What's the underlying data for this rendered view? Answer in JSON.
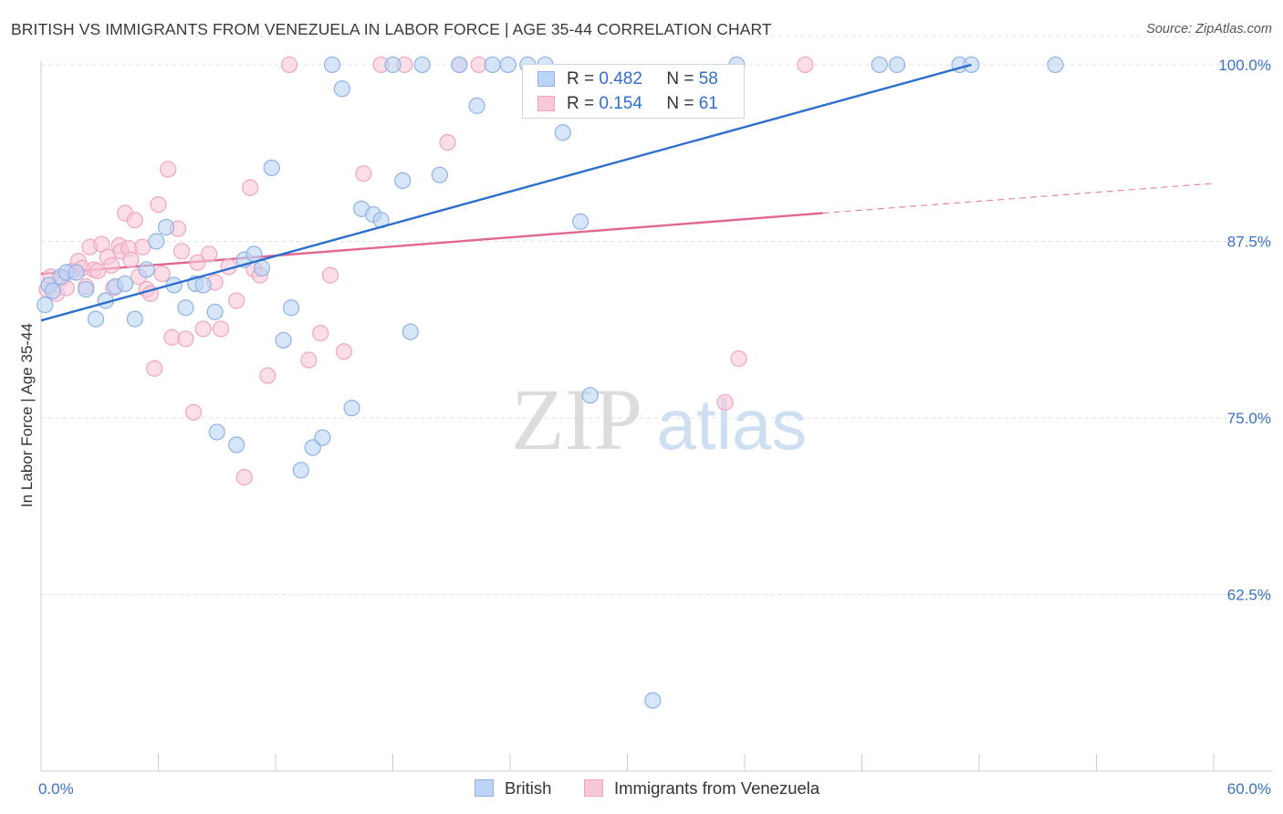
{
  "header": {
    "title": "BRITISH VS IMMIGRANTS FROM VENEZUELA IN LABOR FORCE | AGE 35-44 CORRELATION CHART",
    "source": "Source: ZipAtlas.com"
  },
  "watermark": {
    "zip": "ZIP",
    "atlas": "atlas"
  },
  "legend": {
    "british": {
      "r_label": "R =",
      "r_value": "0.482",
      "n_label": "N =",
      "n_value": "58"
    },
    "venezuela": {
      "r_label": "R =",
      "r_value": "0.154",
      "n_label": "N =",
      "n_value": "61"
    }
  },
  "colors": {
    "british_fill": "#bcd4f5",
    "british_stroke": "#8fb2e6",
    "british_line": "#2c6fcc",
    "venezuela_fill": "#f8c8d8",
    "venezuela_stroke": "#eea6be",
    "venezuela_line": "#e06890",
    "axis_label": "#3a72c8",
    "grid": "#dde2ea"
  },
  "chart_data": {
    "type": "scatter",
    "ylabel": "In Labor Force | Age 35-44",
    "xlim": [
      0,
      60
    ],
    "ylim": [
      50,
      102
    ],
    "x_tick_labels": [
      "0.0%",
      "60.0%"
    ],
    "y_ticks": [
      62.5,
      75.0,
      87.5,
      100.0
    ],
    "y_tick_labels": [
      "62.5%",
      "75.0%",
      "87.5%",
      "100.0%"
    ],
    "grid": "horizontal dashed",
    "legend_position": "top-center",
    "series": [
      {
        "name": "British",
        "points": [
          [
            0.2,
            83.0
          ],
          [
            0.4,
            84.4
          ],
          [
            0.6,
            84.0
          ],
          [
            1.0,
            85.0
          ],
          [
            1.3,
            85.3
          ],
          [
            1.8,
            85.3
          ],
          [
            2.3,
            84.1
          ],
          [
            2.8,
            82.0
          ],
          [
            3.3,
            83.3
          ],
          [
            3.8,
            84.3
          ],
          [
            4.3,
            84.5
          ],
          [
            4.8,
            82.0
          ],
          [
            5.4,
            85.5
          ],
          [
            5.9,
            87.5
          ],
          [
            6.4,
            88.5
          ],
          [
            6.8,
            84.4
          ],
          [
            7.4,
            82.8
          ],
          [
            7.9,
            84.5
          ],
          [
            8.3,
            84.4
          ],
          [
            8.9,
            82.5
          ],
          [
            9.0,
            74.0
          ],
          [
            10.0,
            73.1
          ],
          [
            10.4,
            86.2
          ],
          [
            10.9,
            86.6
          ],
          [
            11.3,
            85.6
          ],
          [
            11.8,
            92.7
          ],
          [
            12.4,
            80.5
          ],
          [
            12.8,
            82.8
          ],
          [
            13.3,
            71.3
          ],
          [
            13.9,
            72.9
          ],
          [
            14.4,
            73.6
          ],
          [
            14.9,
            100.0
          ],
          [
            15.4,
            98.3
          ],
          [
            15.9,
            75.7
          ],
          [
            16.4,
            89.8
          ],
          [
            17.0,
            89.4
          ],
          [
            17.4,
            89.0
          ],
          [
            18.0,
            100.0
          ],
          [
            18.5,
            91.8
          ],
          [
            18.9,
            81.1
          ],
          [
            19.5,
            100.0
          ],
          [
            20.4,
            92.2
          ],
          [
            21.4,
            100.0
          ],
          [
            22.3,
            97.1
          ],
          [
            23.1,
            100.0
          ],
          [
            23.9,
            100.0
          ],
          [
            24.9,
            100.0
          ],
          [
            25.8,
            100.0
          ],
          [
            26.7,
            95.2
          ],
          [
            27.6,
            88.9
          ],
          [
            28.1,
            76.6
          ],
          [
            31.3,
            55.0
          ],
          [
            35.6,
            100.0
          ],
          [
            42.9,
            100.0
          ],
          [
            43.8,
            100.0
          ],
          [
            47.0,
            100.0
          ],
          [
            47.6,
            100.0
          ],
          [
            51.9,
            100.0
          ]
        ],
        "trend": {
          "x": [
            0,
            47.6
          ],
          "y": [
            81.9,
            100.0
          ]
        }
      },
      {
        "name": "Immigrants from Venezuela",
        "points": [
          [
            0.3,
            84.1
          ],
          [
            0.5,
            85.0
          ],
          [
            0.8,
            83.8
          ],
          [
            1.1,
            84.9
          ],
          [
            1.3,
            84.2
          ],
          [
            1.6,
            85.4
          ],
          [
            1.9,
            86.1
          ],
          [
            2.1,
            85.6
          ],
          [
            2.3,
            84.3
          ],
          [
            2.5,
            87.1
          ],
          [
            2.7,
            85.5
          ],
          [
            2.9,
            85.4
          ],
          [
            3.1,
            87.3
          ],
          [
            3.4,
            86.4
          ],
          [
            3.6,
            85.8
          ],
          [
            3.7,
            84.2
          ],
          [
            4.0,
            87.2
          ],
          [
            4.1,
            86.8
          ],
          [
            4.3,
            89.5
          ],
          [
            4.5,
            87.0
          ],
          [
            4.6,
            86.2
          ],
          [
            4.8,
            89.0
          ],
          [
            5.0,
            85.0
          ],
          [
            5.2,
            87.1
          ],
          [
            5.4,
            84.1
          ],
          [
            5.6,
            83.8
          ],
          [
            5.8,
            78.5
          ],
          [
            6.0,
            90.1
          ],
          [
            6.2,
            85.2
          ],
          [
            6.5,
            92.6
          ],
          [
            6.7,
            80.7
          ],
          [
            7.0,
            88.4
          ],
          [
            7.2,
            86.8
          ],
          [
            7.4,
            80.6
          ],
          [
            7.8,
            75.4
          ],
          [
            8.0,
            86.0
          ],
          [
            8.3,
            81.3
          ],
          [
            8.6,
            86.6
          ],
          [
            8.9,
            84.6
          ],
          [
            9.2,
            81.3
          ],
          [
            9.6,
            85.7
          ],
          [
            10.0,
            83.3
          ],
          [
            10.4,
            70.8
          ],
          [
            10.7,
            91.3
          ],
          [
            10.9,
            85.5
          ],
          [
            11.2,
            85.1
          ],
          [
            11.6,
            78.0
          ],
          [
            12.7,
            100.0
          ],
          [
            13.7,
            79.1
          ],
          [
            14.3,
            81.0
          ],
          [
            14.8,
            85.1
          ],
          [
            15.5,
            79.7
          ],
          [
            16.5,
            92.3
          ],
          [
            17.4,
            100.0
          ],
          [
            18.6,
            100.0
          ],
          [
            20.8,
            94.5
          ],
          [
            21.4,
            100.0
          ],
          [
            22.4,
            100.0
          ],
          [
            35.0,
            76.1
          ],
          [
            35.7,
            79.2
          ],
          [
            39.1,
            100.0
          ]
        ],
        "trend": {
          "x": [
            0,
            40.0
          ],
          "y": [
            85.2,
            89.5
          ]
        },
        "trend_extension": {
          "x": [
            40.0,
            60.0
          ],
          "y": [
            89.5,
            91.6
          ]
        }
      }
    ]
  }
}
